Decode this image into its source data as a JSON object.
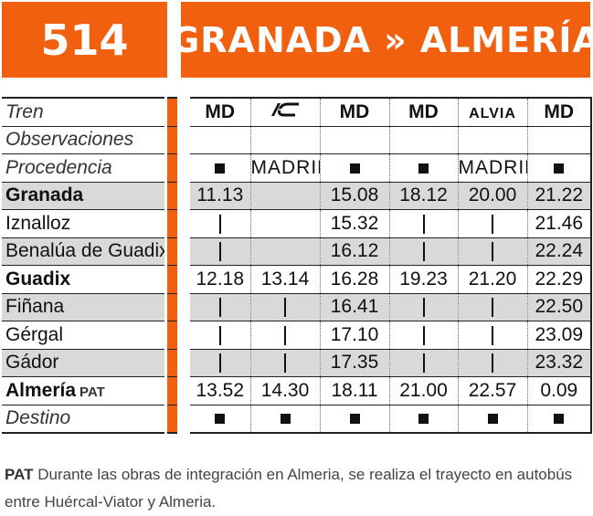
{
  "header": {
    "line_number": "514",
    "origin": "GRANADA",
    "separator": "»",
    "destination": "ALMERÍA",
    "accent_color": "#f0600f"
  },
  "table": {
    "row_labels": {
      "train": "Tren",
      "observations": "Observaciones",
      "origin": "Procedencia",
      "destination": "Destino"
    },
    "trains": [
      "MD",
      "IC",
      "MD",
      "MD",
      "ALVIA",
      "MD"
    ],
    "origins": [
      "■",
      "MADRID",
      "■",
      "■",
      "MADRID",
      "■"
    ],
    "destinations": [
      "■",
      "■",
      "■",
      "■",
      "■",
      "■"
    ],
    "stops": [
      {
        "name": "Granada",
        "times": [
          "11.13",
          "",
          "15.08",
          "18.12",
          "20.00",
          "21.22"
        ]
      },
      {
        "name": "Iznalloz",
        "times": [
          "|",
          "",
          "15.32",
          "|",
          "|",
          "21.46"
        ]
      },
      {
        "name": "Benalúa de Guadix",
        "times": [
          "|",
          "",
          "16.12",
          "|",
          "|",
          "22.24"
        ]
      },
      {
        "name": "Guadix",
        "times": [
          "12.18",
          "13.14",
          "16.28",
          "19.23",
          "21.20",
          "22.29"
        ]
      },
      {
        "name": "Fiñana",
        "times": [
          "|",
          "|",
          "16.41",
          "|",
          "|",
          "22.50"
        ]
      },
      {
        "name": "Gérgal",
        "times": [
          "|",
          "|",
          "17.10",
          "|",
          "|",
          "23.09"
        ]
      },
      {
        "name": "Gádor",
        "times": [
          "|",
          "|",
          "17.35",
          "|",
          "|",
          "23.32"
        ]
      },
      {
        "name": "Almería",
        "note": "PAT",
        "times": [
          "13.52",
          "14.30",
          "18.11",
          "21.00",
          "22.57",
          "0.09"
        ]
      }
    ]
  },
  "footnote": {
    "code": "PAT",
    "text": "Durante las obras de integración en Almeria, se realiza el trayecto en autobús entre Huércal-Viator y Almeria."
  }
}
